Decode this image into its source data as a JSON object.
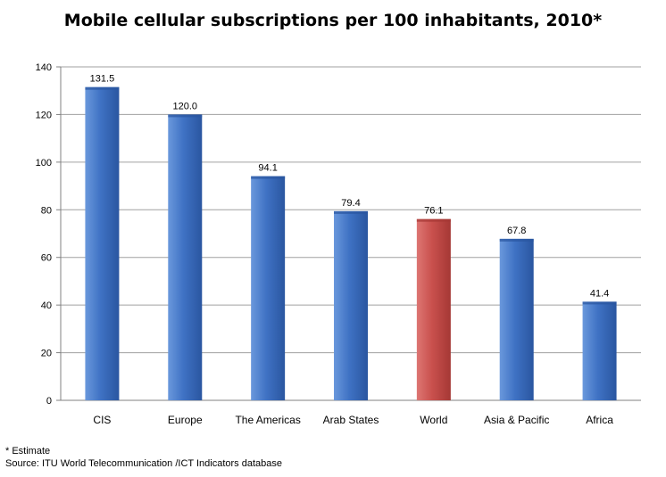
{
  "chart_data": {
    "type": "bar",
    "title": "Mobile cellular subscriptions per 100 inhabitants, 2010*",
    "xlabel": "",
    "ylabel": "",
    "categories": [
      "CIS",
      "Europe",
      "The Americas",
      "Arab States",
      "World",
      "Asia & Pacific",
      "Africa"
    ],
    "values": [
      131.5,
      120.0,
      94.1,
      79.4,
      76.1,
      67.8,
      41.4
    ],
    "value_labels": [
      "131.5",
      "120.0",
      "94.1",
      "79.4",
      "76.1",
      "67.8",
      "41.4"
    ],
    "highlight_category": "World",
    "ylim": [
      0,
      140
    ],
    "yticks": [
      0,
      20,
      40,
      60,
      80,
      100,
      120,
      140
    ],
    "grid": true,
    "legend": "none"
  },
  "colors": {
    "bar": "#3f72c4",
    "bar_light": "#6a98dc",
    "bar_dark": "#2a56a0",
    "highlight": "#c9504d",
    "highlight_light": "#dd7673",
    "highlight_dark": "#a53835",
    "grid": "#a0a0a0",
    "axis": "#808080"
  },
  "footnote": "* Estimate",
  "source": "Source:  ITU World Telecommunication /ICT Indicators database"
}
